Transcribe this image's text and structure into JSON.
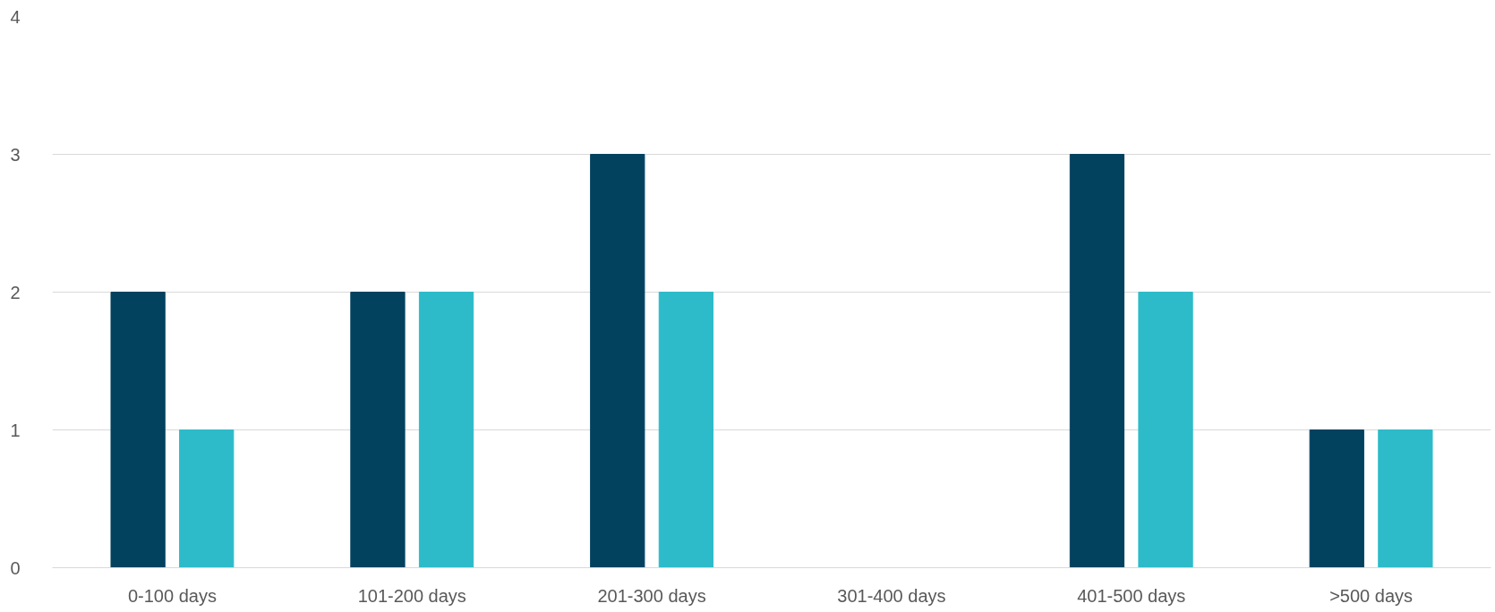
{
  "chart_data": {
    "type": "bar",
    "categories": [
      "0-100 days",
      "101-200 days",
      "201-300 days",
      "301-400 days",
      "401-500 days",
      ">500 days"
    ],
    "series": [
      {
        "color": "#03425f",
        "values": [
          2,
          2,
          3,
          0,
          3,
          1
        ]
      },
      {
        "color": "#2dbbca",
        "values": [
          1,
          2,
          2,
          0,
          2,
          1
        ]
      }
    ],
    "ylim": [
      0,
      4
    ],
    "yticks": [
      0,
      1,
      2,
      3,
      4
    ],
    "grid": "y"
  }
}
